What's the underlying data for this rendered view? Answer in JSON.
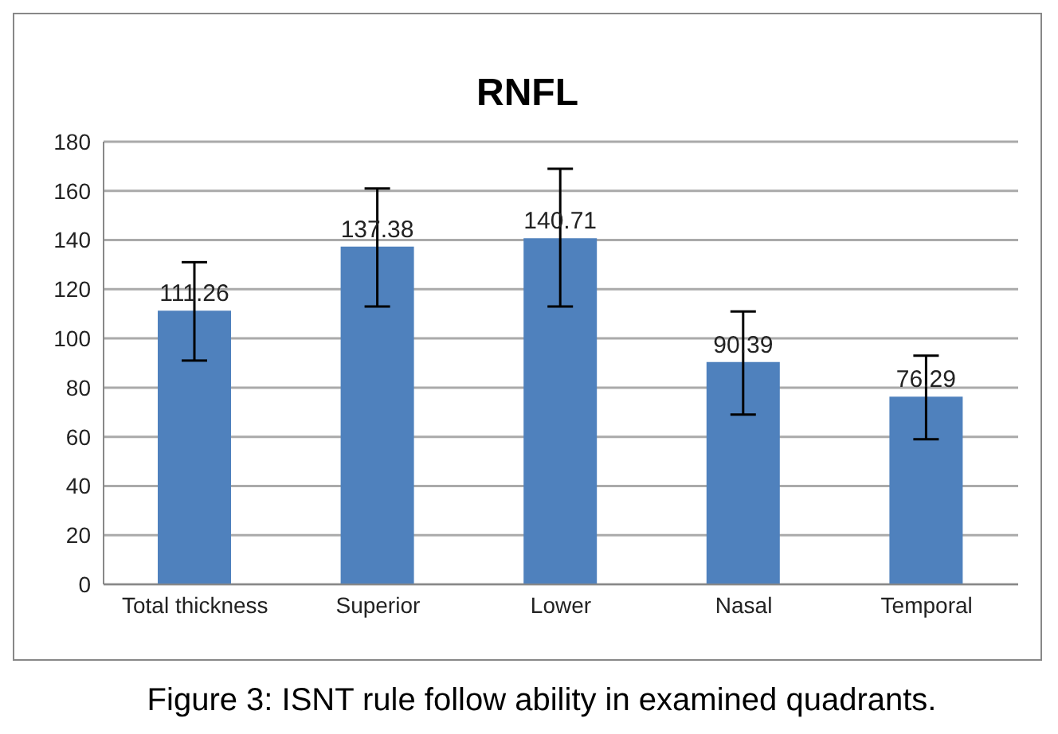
{
  "chart_data": {
    "type": "bar",
    "title": "RNFL",
    "categories": [
      "Total thickness",
      "Superior",
      "Lower",
      "Nasal",
      "Temporal"
    ],
    "values": [
      111.26,
      137.38,
      140.71,
      90.39,
      76.29
    ],
    "color": "#4f81bd",
    "errors": [
      [
        91,
        131
      ],
      [
        113,
        161
      ],
      [
        113,
        169
      ],
      [
        69,
        111
      ],
      [
        59,
        93
      ]
    ],
    "ylim": [
      0,
      180
    ],
    "yticks": [
      0,
      20,
      40,
      60,
      80,
      100,
      120,
      140,
      160,
      180
    ],
    "grid": "y",
    "data_labels": true,
    "annotations": [
      "Figure 3: ISNT rule follow ability in examined quadrants."
    ]
  }
}
